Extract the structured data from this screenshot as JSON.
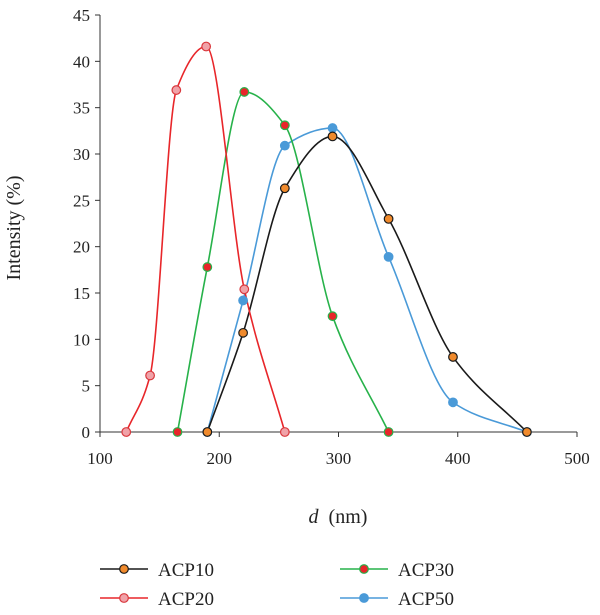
{
  "chart_data": {
    "type": "line",
    "xlabel_var": "d",
    "xlabel_unit": "(nm)",
    "ylabel": "Intensity (%)",
    "xlim": [
      100,
      500
    ],
    "ylim": [
      0,
      45
    ],
    "xticks": [
      100,
      200,
      300,
      400,
      500
    ],
    "yticks": [
      0,
      5,
      10,
      15,
      20,
      25,
      30,
      35,
      40,
      45
    ],
    "grid": false,
    "legend_position": "bottom",
    "series": [
      {
        "name": "ACP10",
        "line_color": "#1a1a1a",
        "marker_fill": "#f08a2c",
        "marker_stroke": "#1a1a1a",
        "x": [
          190,
          220,
          255,
          295,
          342,
          396,
          458
        ],
        "y": [
          0,
          10.7,
          26.3,
          31.9,
          23.0,
          8.1,
          0
        ]
      },
      {
        "name": "ACP20",
        "line_color": "#e8262a",
        "marker_fill": "#f0a2a8",
        "marker_stroke": "#d9383d",
        "x": [
          122,
          142,
          164,
          189,
          221,
          255
        ],
        "y": [
          0,
          6.1,
          36.9,
          41.6,
          15.4,
          0
        ]
      },
      {
        "name": "ACP30",
        "line_color": "#27b24a",
        "marker_fill": "#e8252a",
        "marker_stroke": "#27b24a",
        "x": [
          165,
          190,
          221,
          255,
          295,
          342
        ],
        "y": [
          0,
          17.8,
          36.7,
          33.1,
          12.5,
          0
        ]
      },
      {
        "name": "ACP50",
        "line_color": "#4a9ad8",
        "marker_fill": "#4a9ad8",
        "marker_stroke": "#4a9ad8",
        "x": [
          190,
          220,
          255,
          295,
          342,
          396,
          458
        ],
        "y": [
          0,
          14.2,
          30.9,
          32.8,
          18.9,
          3.2,
          0
        ]
      }
    ]
  }
}
